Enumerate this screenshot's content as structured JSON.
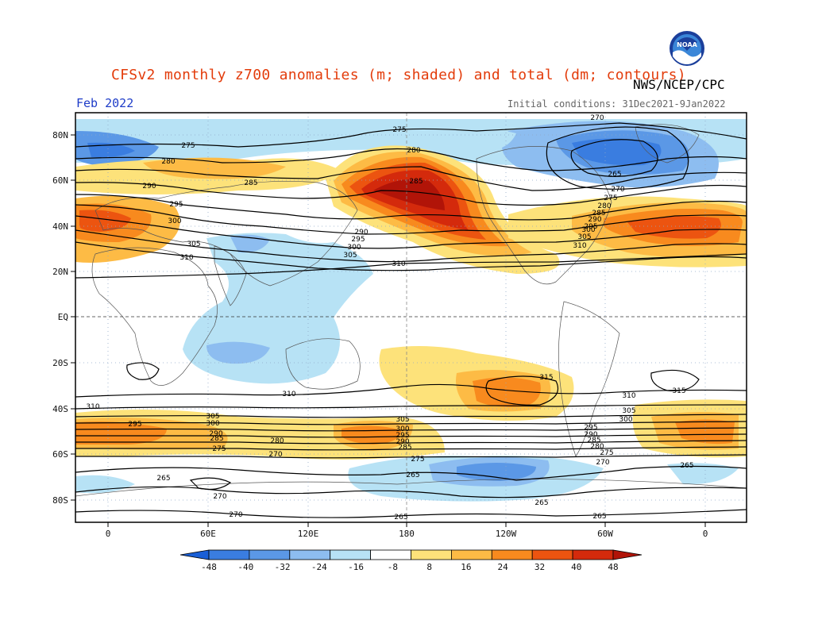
{
  "header": {
    "title": "CFSv2 monthly z700 anomalies (m; shaded) and total (dm; contours)",
    "agency": "NWS/NCEP/CPC",
    "month": "Feb 2022",
    "initial_conditions": "Initial conditions: 31Dec2021-9Jan2022",
    "logo_text": "NOAA"
  },
  "axes": {
    "lat_labels": [
      "80N",
      "60N",
      "40N",
      "20N",
      "EQ",
      "20S",
      "40S",
      "60S",
      "80S"
    ],
    "lon_labels": [
      "0",
      "60E",
      "120E",
      "180",
      "120W",
      "60W",
      "0"
    ]
  },
  "colorbar": {
    "ticks": [
      "-48",
      "-40",
      "-32",
      "-24",
      "-16",
      "-8",
      "8",
      "16",
      "24",
      "32",
      "40",
      "48"
    ],
    "colors": [
      "#1a5fd6",
      "#3a7de0",
      "#5b98e6",
      "#8dbdf0",
      "#b7e2f5",
      "#ffffff",
      "#fde27a",
      "#fdbb45",
      "#f88a1e",
      "#ec5410",
      "#d42a0c",
      "#b11408"
    ]
  },
  "contour_values": {
    "north_left": [
      "275",
      "280",
      "285",
      "290",
      "295",
      "300",
      "305",
      "310"
    ],
    "north_center": [
      "275",
      "280",
      "285",
      "290",
      "295",
      "300",
      "305",
      "310"
    ],
    "north_right": [
      "270",
      "265",
      "270",
      "275",
      "280",
      "285",
      "290",
      "295",
      "300",
      "305",
      "310"
    ],
    "south_left": [
      "310",
      "305",
      "300",
      "295",
      "290",
      "285",
      "275",
      "270"
    ],
    "south_center": [
      "310",
      "305",
      "300",
      "295",
      "290",
      "285",
      "280",
      "275",
      "265",
      "265"
    ],
    "south_right": [
      "315",
      "310",
      "305",
      "300",
      "295",
      "290",
      "285",
      "280",
      "275",
      "270",
      "265",
      "315"
    ],
    "polar": [
      "265",
      "270",
      "270",
      "265",
      "265"
    ]
  }
}
